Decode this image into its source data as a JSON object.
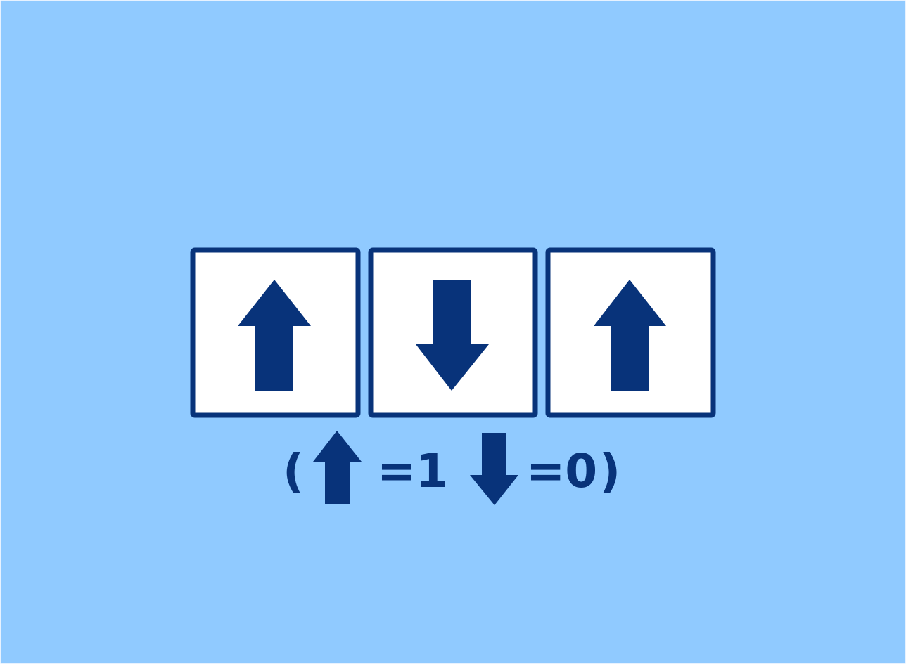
{
  "colors": {
    "background": "#90CAFF",
    "accent": "#08337A",
    "tile_fill": "#FFFFFF"
  },
  "tiles": [
    {
      "arrow": "up-arrow-icon"
    },
    {
      "arrow": "down-arrow-icon"
    },
    {
      "arrow": "up-arrow-icon"
    }
  ],
  "legend": {
    "open_paren": "(",
    "up_label": "=1",
    "down_label": "=0",
    "close_paren": ")"
  }
}
